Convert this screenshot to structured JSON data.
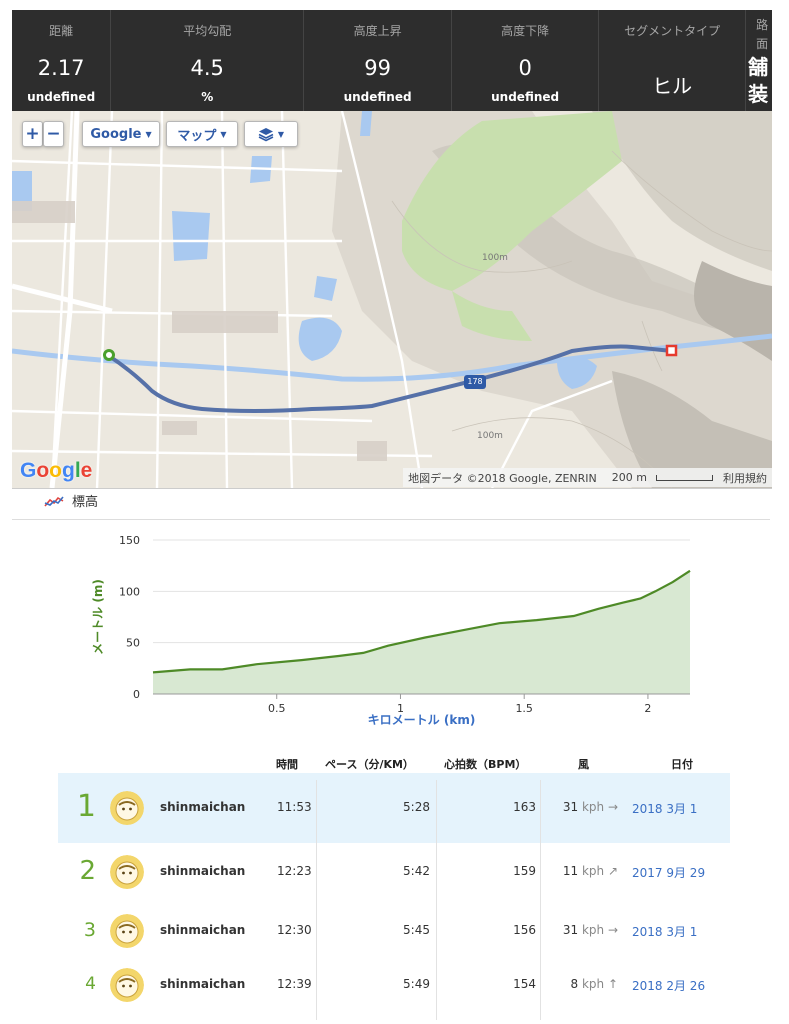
{
  "stats": [
    {
      "label": "距離",
      "value": "2.17",
      "unit": "undefined"
    },
    {
      "label": "平均勾配",
      "value": "4.5",
      "unit": "%"
    },
    {
      "label": "高度上昇",
      "value": "99",
      "unit": "undefined"
    },
    {
      "label": "高度下降",
      "value": "0",
      "unit": "undefined"
    },
    {
      "label": "セグメントタイプ",
      "value": "ヒル",
      "unit": ""
    },
    {
      "label": "路面",
      "value": "舗装",
      "unit": ""
    }
  ],
  "map": {
    "zoom_in": "+",
    "zoom_out": "−",
    "provider": "Google",
    "map_type": "マップ",
    "layers_icon": "layers-icon",
    "logo": "Google",
    "attribution": "地図データ ©2018 Google, ZENRIN",
    "scale": "200 m",
    "terms": "利用規約",
    "route_badge": "178",
    "contours": [
      "100m",
      "100m"
    ]
  },
  "legend": {
    "label": "標高"
  },
  "chart_data": {
    "type": "area",
    "title": "",
    "xlabel": "キロメートル (km)",
    "ylabel": "メートル (m)",
    "xlim": [
      0,
      2.17
    ],
    "ylim": [
      0,
      150
    ],
    "xticks": [
      0.5,
      1,
      1.5,
      2
    ],
    "yticks": [
      0,
      50,
      100,
      150
    ],
    "series": [
      {
        "name": "",
        "x": [
          0,
          0.15,
          0.28,
          0.42,
          0.6,
          0.75,
          0.85,
          0.95,
          1.1,
          1.25,
          1.4,
          1.55,
          1.7,
          1.8,
          1.9,
          1.97,
          2.03,
          2.1,
          2.17
        ],
        "y": [
          21,
          24,
          24,
          29,
          33,
          37,
          40,
          47,
          55,
          62,
          69,
          72,
          76,
          83,
          89,
          93,
          100,
          109,
          120
        ]
      }
    ],
    "color": "#4e8a27",
    "fill": "#d8e8d2"
  },
  "table": {
    "headers": {
      "time": "時間",
      "pace": "ペース（分/KM）",
      "hr": "心拍数（BPM）",
      "wind": "風",
      "date": "日付"
    },
    "rows": [
      {
        "rank": "1",
        "name": "shinmaichan",
        "time": "11:53",
        "pace": "5:28",
        "hr": "163",
        "wind": "31",
        "wind_unit": "kph",
        "wind_dir": "→",
        "date": "2018 3月 1"
      },
      {
        "rank": "2",
        "name": "shinmaichan",
        "time": "12:23",
        "pace": "5:42",
        "hr": "159",
        "wind": "11",
        "wind_unit": "kph",
        "wind_dir": "↗",
        "date": "2017 9月 29"
      },
      {
        "rank": "3",
        "name": "shinmaichan",
        "time": "12:30",
        "pace": "5:45",
        "hr": "156",
        "wind": "31",
        "wind_unit": "kph",
        "wind_dir": "→",
        "date": "2018 3月 1"
      },
      {
        "rank": "4",
        "name": "shinmaichan",
        "time": "12:39",
        "pace": "5:49",
        "hr": "154",
        "wind": "8",
        "wind_unit": "kph",
        "wind_dir": "↑",
        "date": "2018 2月 26"
      }
    ]
  }
}
